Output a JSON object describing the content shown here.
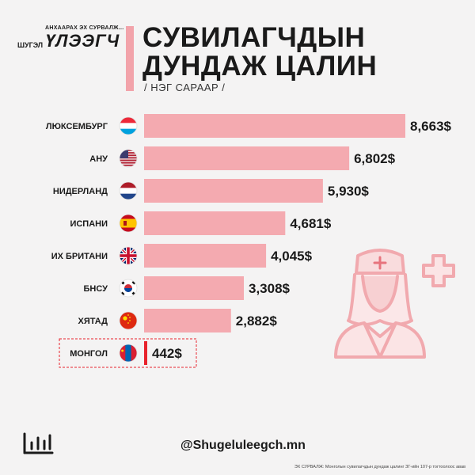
{
  "logo": {
    "tagline": "АНХААРАХ ЭХ СУРВАЛЖ...",
    "small": "ШУГЭЛ",
    "big": "ҮЛЭЭГЧ"
  },
  "header": {
    "title_line1": "СУВИЛАГЧДЫН",
    "title_line2": "ДУНДАЖ ЦАЛИН",
    "subtitle": "/ НЭГ САРААР /"
  },
  "chart_data": {
    "type": "bar",
    "orientation": "horizontal",
    "categories": [
      "ЛЮКСЕМБУРГ",
      "АНУ",
      "НИДЕРЛАНД",
      "ИСПАНИ",
      "ИХ БРИТАНИ",
      "БНСУ",
      "ХЯТАД",
      "МОНГОЛ"
    ],
    "values": [
      8663,
      6802,
      5930,
      4681,
      4045,
      3308,
      2882,
      442
    ],
    "value_labels": [
      "8,663$",
      "6,802$",
      "5,930$",
      "4,681$",
      "4,045$",
      "3,308$",
      "2,882$",
      "442$"
    ],
    "flags": [
      "luxembourg-flag-icon",
      "usa-flag-icon",
      "netherlands-flag-icon",
      "spain-flag-icon",
      "uk-flag-icon",
      "south-korea-flag-icon",
      "china-flag-icon",
      "mongolia-flag-icon"
    ],
    "highlight": "МОНГОЛ",
    "bar_color": "#f4aab0",
    "highlight_color": "#e8232c",
    "title": "",
    "xlabel": "",
    "ylabel": "",
    "xlim": [
      0,
      8663
    ]
  },
  "footer": {
    "handle": "@Shugeluleegch.mn",
    "source": "ЭХ СУРВАЛЖ: Монголын сувилагчдын дундаж цалинг ЗГ-ийн 107-р тогтоолоос авав",
    "chart_icon": "bar-chart-icon"
  }
}
